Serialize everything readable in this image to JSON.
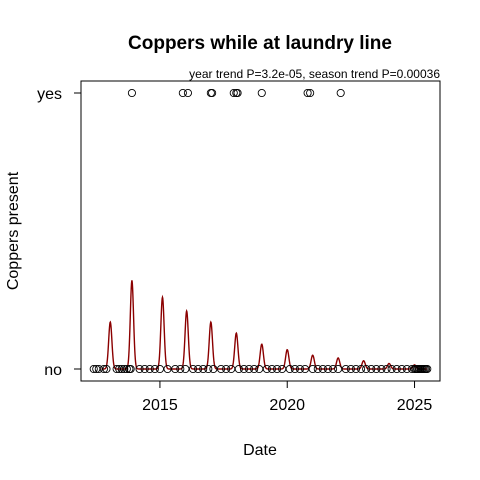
{
  "chart_data": {
    "type": "scatter",
    "title": "Coppers while at laundry line",
    "subtitle": "year trend P=3.2e-05, season trend P=0.00036",
    "xlabel": "Date",
    "ylabel": "Coppers present",
    "x_ticks": [
      2015,
      2020,
      2025
    ],
    "y_categories": [
      "no",
      "yes"
    ],
    "xlim": [
      2011.9,
      2026.0
    ],
    "colors": {
      "points": "#000000",
      "trend": "#8b0000"
    },
    "series": [
      {
        "type": "scatter",
        "yes_x": [
          2013.9,
          2015.9,
          2016.1,
          2017.0,
          2017.05,
          2017.9,
          2018.0,
          2018.05,
          2019.0,
          2020.8,
          2020.9,
          2022.1
        ],
        "no_x": [
          2012.4,
          2012.5,
          2012.6,
          2012.8,
          2012.9,
          2013.3,
          2013.4,
          2013.5,
          2013.6,
          2013.7,
          2013.8,
          2013.85,
          2014.2,
          2014.4,
          2014.6,
          2014.8,
          2015.0,
          2015.3,
          2015.6,
          2015.8,
          2016.0,
          2016.3,
          2016.5,
          2016.7,
          2016.9,
          2017.1,
          2017.4,
          2017.6,
          2017.8,
          2018.1,
          2018.3,
          2018.5,
          2018.7,
          2018.9,
          2019.2,
          2019.4,
          2019.6,
          2019.8,
          2020.1,
          2020.3,
          2020.5,
          2020.7,
          2021.0,
          2021.2,
          2021.4,
          2021.6,
          2021.8,
          2022.0,
          2022.3,
          2022.5,
          2022.7,
          2022.9,
          2023.1,
          2023.3,
          2023.5,
          2023.7,
          2023.9,
          2024.1,
          2024.3,
          2024.5,
          2024.7,
          2024.9,
          2025.0,
          2025.05,
          2025.1,
          2025.15,
          2025.2,
          2025.25,
          2025.3,
          2025.35,
          2025.4,
          2025.45,
          2025.5
        ]
      },
      {
        "type": "line",
        "base_prob": 0.0,
        "peak_x": [
          2013.05,
          2013.9,
          2015.1,
          2016.05,
          2017.0,
          2018.0,
          2019.0,
          2020.0,
          2021.0,
          2022.0,
          2023.0,
          2024.0,
          2025.0
        ],
        "peak_prob": [
          0.17,
          0.32,
          0.26,
          0.21,
          0.17,
          0.13,
          0.09,
          0.07,
          0.05,
          0.04,
          0.03,
          0.02,
          0.015
        ],
        "peak_width": 0.09,
        "x_start": 2012.7,
        "x_end": 2025.5
      }
    ]
  }
}
